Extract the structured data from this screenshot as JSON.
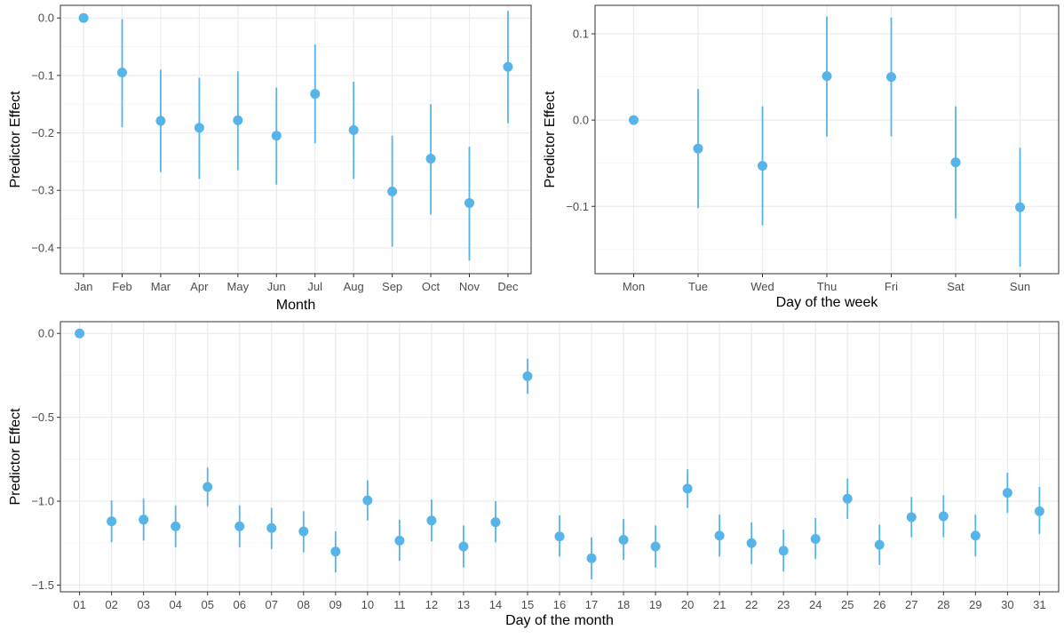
{
  "colors": {
    "point": "#56B4E9",
    "panel_border": "#333333",
    "grid_major": "#EBEBEB",
    "grid_minor": "#F5F5F5",
    "tick_label": "#4D4D4D",
    "axis_title": "#000000"
  },
  "chart_data": [
    {
      "type": "scatter",
      "subtype": "point-range",
      "title": "",
      "xlabel": "Month",
      "ylabel": "Predictor Effect",
      "categories": [
        "Jan",
        "Feb",
        "Mar",
        "Apr",
        "May",
        "Jun",
        "Jul",
        "Aug",
        "Sep",
        "Oct",
        "Nov",
        "Dec"
      ],
      "values": [
        0.0,
        -0.095,
        -0.179,
        -0.191,
        -0.178,
        -0.205,
        -0.132,
        -0.195,
        -0.302,
        -0.245,
        -0.322,
        -0.085
      ],
      "lower": [
        0.0,
        -0.19,
        -0.268,
        -0.28,
        -0.265,
        -0.29,
        -0.218,
        -0.28,
        -0.398,
        -0.342,
        -0.422,
        -0.183
      ],
      "upper": [
        0.0,
        -0.002,
        -0.09,
        -0.104,
        -0.093,
        -0.121,
        -0.046,
        -0.111,
        -0.205,
        -0.15,
        -0.224,
        0.012
      ],
      "yticks": [
        0.0,
        -0.1,
        -0.2,
        -0.3,
        -0.4
      ],
      "ytick_labels": [
        "0.0",
        "−0.1",
        "−0.2",
        "−0.3",
        "−0.4"
      ],
      "ylim": [
        -0.445,
        0.022
      ],
      "grid": true,
      "legend": "none"
    },
    {
      "type": "scatter",
      "subtype": "point-range",
      "title": "",
      "xlabel": "Day of the week",
      "ylabel": "Predictor Effect",
      "categories": [
        "Mon",
        "Tue",
        "Wed",
        "Thu",
        "Fri",
        "Sat",
        "Sun"
      ],
      "values": [
        0.0,
        -0.033,
        -0.053,
        0.051,
        0.05,
        -0.049,
        -0.101
      ],
      "lower": [
        0.0,
        -0.102,
        -0.122,
        -0.019,
        -0.019,
        -0.114,
        -0.17
      ],
      "upper": [
        0.0,
        0.036,
        0.016,
        0.12,
        0.119,
        0.016,
        -0.032
      ],
      "yticks": [
        0.1,
        0.0,
        -0.1
      ],
      "ytick_labels": [
        "0.1",
        "0.0",
        "−0.1"
      ],
      "ylim": [
        -0.178,
        0.133
      ],
      "grid": true,
      "legend": "none"
    },
    {
      "type": "scatter",
      "subtype": "point-range",
      "title": "",
      "xlabel": "Day of the month",
      "ylabel": "Predictor Effect",
      "categories": [
        "01",
        "02",
        "03",
        "04",
        "05",
        "06",
        "07",
        "08",
        "09",
        "10",
        "11",
        "12",
        "13",
        "14",
        "15",
        "16",
        "17",
        "18",
        "19",
        "20",
        "21",
        "22",
        "23",
        "24",
        "25",
        "26",
        "27",
        "28",
        "29",
        "30",
        "31"
      ],
      "values": [
        0.0,
        -1.12,
        -1.11,
        -1.15,
        -0.915,
        -1.15,
        -1.16,
        -1.18,
        -1.3,
        -0.995,
        -1.235,
        -1.115,
        -1.27,
        -1.125,
        -0.255,
        -1.21,
        -1.34,
        -1.23,
        -1.27,
        -0.925,
        -1.205,
        -1.25,
        -1.295,
        -1.225,
        -0.985,
        -1.26,
        -1.095,
        -1.09,
        -1.205,
        -0.95,
        -1.06
      ],
      "lower": [
        0.0,
        -1.245,
        -1.235,
        -1.275,
        -1.03,
        -1.275,
        -1.285,
        -1.305,
        -1.425,
        -1.115,
        -1.355,
        -1.24,
        -1.395,
        -1.245,
        -0.36,
        -1.33,
        -1.465,
        -1.35,
        -1.395,
        -1.04,
        -1.33,
        -1.375,
        -1.42,
        -1.345,
        -1.105,
        -1.38,
        -1.215,
        -1.215,
        -1.33,
        -1.07,
        -1.195
      ],
      "upper": [
        0.0,
        -0.995,
        -0.985,
        -1.025,
        -0.8,
        -1.025,
        -1.04,
        -1.06,
        -1.18,
        -0.875,
        -1.11,
        -0.99,
        -1.145,
        -1.0,
        -0.15,
        -1.085,
        -1.215,
        -1.105,
        -1.145,
        -0.81,
        -1.08,
        -1.125,
        -1.17,
        -1.1,
        -0.865,
        -1.14,
        -0.975,
        -0.965,
        -1.08,
        -0.83,
        -0.915
      ],
      "yticks": [
        0.0,
        -0.5,
        -1.0,
        -1.5
      ],
      "ytick_labels": [
        "0.0",
        "−0.5",
        "−1.0",
        "−1.5"
      ],
      "ylim": [
        -1.54,
        0.07
      ],
      "grid": true,
      "legend": "none"
    }
  ]
}
